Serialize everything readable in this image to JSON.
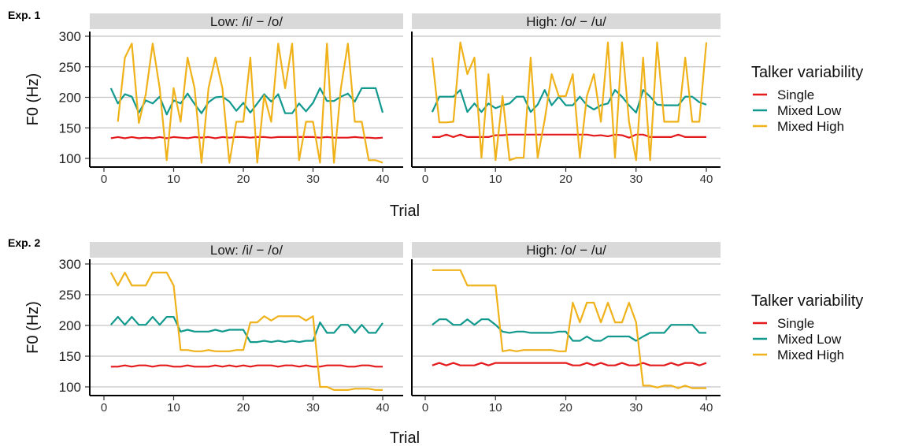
{
  "chart_data": [
    {
      "type": "line",
      "tag": "Exp. 1",
      "ylabel": "F0 (Hz)",
      "xlabel": "Trial",
      "xlim": [
        1,
        40
      ],
      "ylim": [
        100,
        300
      ],
      "x_ticks": [
        0,
        10,
        20,
        30,
        40
      ],
      "y_ticks": [
        100,
        150,
        200,
        250,
        300
      ],
      "grid": "horizontal",
      "legend": {
        "title": "Talker variability",
        "placement": "right",
        "entries": [
          "Single",
          "Mixed Low",
          "Mixed High"
        ]
      },
      "panels": [
        {
          "strip": "Low: /i/ − /o/",
          "series": [
            {
              "name": "Single",
              "color": "#e41a1c",
              "values": [
                133,
                135,
                133,
                135,
                133,
                134,
                133,
                135,
                133,
                135,
                134,
                133,
                135,
                134,
                135,
                133,
                135,
                134,
                135,
                135,
                134,
                135,
                135,
                134,
                135,
                135,
                135,
                135,
                135,
                135,
                134,
                135,
                134,
                134,
                134,
                135,
                134,
                134,
                133,
                134
              ]
            },
            {
              "name": "Mixed Low",
              "color": "#11998e",
              "values": [
                215,
                190,
                205,
                201,
                175,
                195,
                190,
                201,
                172,
                195,
                190,
                206,
                189,
                174,
                192,
                200,
                201,
                193,
                178,
                191,
                175,
                190,
                205,
                193,
                205,
                174,
                174,
                190,
                177,
                191,
                215,
                194,
                194,
                201,
                206,
                193,
                215,
                215,
                215,
                175
              ]
            },
            {
              "name": "Mixed High",
              "color": "#f0b21a",
              "values": [
                null,
                160,
                265,
                288,
                158,
                205,
                288,
                215,
                97,
                215,
                160,
                265,
                215,
                93,
                215,
                265,
                215,
                93,
                160,
                160,
                265,
                93,
                203,
                160,
                288,
                215,
                288,
                97,
                160,
                160,
                93,
                288,
                93,
                215,
                288,
                160,
                160,
                97,
                97,
                93
              ]
            }
          ]
        },
        {
          "strip": "High: /o/ − /u/",
          "series": [
            {
              "name": "Single",
              "color": "#e41a1c",
              "values": [
                135,
                135,
                139,
                135,
                139,
                135,
                135,
                135,
                135,
                138,
                138,
                139,
                139,
                139,
                139,
                139,
                139,
                139,
                139,
                139,
                139,
                139,
                139,
                137,
                138,
                136,
                139,
                138,
                134,
                139,
                139,
                135,
                135,
                135,
                135,
                139,
                135,
                135,
                135,
                135
              ]
            },
            {
              "name": "Mixed Low",
              "color": "#11998e",
              "values": [
                176,
                201,
                201,
                201,
                212,
                176,
                190,
                176,
                190,
                182,
                187,
                190,
                201,
                201,
                176,
                188,
                212,
                187,
                201,
                187,
                187,
                201,
                187,
                180,
                187,
                190,
                212,
                201,
                187,
                175,
                212,
                201,
                188,
                187,
                187,
                187,
                201,
                201,
                192,
                188
              ]
            },
            {
              "name": "Mixed High",
              "color": "#f0b21a",
              "values": [
                265,
                159,
                159,
                160,
                290,
                238,
                265,
                101,
                238,
                97,
                202,
                97,
                101,
                101,
                265,
                101,
                163,
                238,
                202,
                202,
                238,
                101,
                202,
                238,
                160,
                290,
                101,
                290,
                160,
                97,
                265,
                97,
                290,
                160,
                160,
                160,
                265,
                160,
                160,
                290
              ]
            }
          ]
        }
      ]
    },
    {
      "type": "line",
      "tag": "Exp. 2",
      "ylabel": "F0 (Hz)",
      "xlabel": "Trial",
      "xlim": [
        1,
        40
      ],
      "ylim": [
        100,
        300
      ],
      "x_ticks": [
        0,
        10,
        20,
        30,
        40
      ],
      "y_ticks": [
        100,
        150,
        200,
        250,
        300
      ],
      "grid": "horizontal",
      "legend": {
        "title": "Talker variability",
        "placement": "right",
        "entries": [
          "Single",
          "Mixed Low",
          "Mixed High"
        ]
      },
      "panels": [
        {
          "strip": "Low: /i/ − /o/",
          "series": [
            {
              "name": "Single",
              "color": "#e41a1c",
              "values": [
                133,
                133,
                135,
                133,
                135,
                135,
                133,
                135,
                135,
                133,
                133,
                135,
                133,
                133,
                133,
                135,
                133,
                135,
                133,
                135,
                133,
                135,
                135,
                135,
                133,
                135,
                135,
                133,
                135,
                133,
                133,
                135,
                135,
                135,
                133,
                133,
                135,
                135,
                133,
                133
              ]
            },
            {
              "name": "Mixed Low",
              "color": "#11998e",
              "values": [
                201,
                214,
                201,
                214,
                201,
                201,
                214,
                201,
                214,
                214,
                190,
                193,
                190,
                190,
                190,
                193,
                190,
                193,
                193,
                193,
                173,
                173,
                175,
                173,
                175,
                173,
                175,
                173,
                175,
                175,
                205,
                188,
                188,
                201,
                201,
                188,
                201,
                188,
                188,
                204
              ]
            },
            {
              "name": "Mixed High",
              "color": "#f0b21a",
              "values": [
                286,
                265,
                286,
                265,
                265,
                265,
                286,
                286,
                286,
                265,
                160,
                160,
                158,
                158,
                160,
                158,
                158,
                158,
                160,
                160,
                205,
                205,
                215,
                208,
                215,
                215,
                215,
                215,
                208,
                215,
                100,
                100,
                95,
                95,
                95,
                97,
                97,
                97,
                95,
                95
              ]
            }
          ]
        },
        {
          "strip": "High: /o/ − /u/",
          "series": [
            {
              "name": "Single",
              "color": "#e41a1c",
              "values": [
                135,
                139,
                135,
                139,
                135,
                135,
                135,
                139,
                135,
                139,
                139,
                139,
                139,
                139,
                139,
                139,
                139,
                139,
                139,
                139,
                135,
                135,
                139,
                135,
                139,
                135,
                135,
                139,
                135,
                135,
                139,
                135,
                135,
                135,
                139,
                135,
                139,
                139,
                135,
                139
              ]
            },
            {
              "name": "Mixed Low",
              "color": "#11998e",
              "values": [
                201,
                210,
                210,
                201,
                201,
                210,
                201,
                210,
                210,
                201,
                190,
                188,
                190,
                190,
                188,
                188,
                188,
                188,
                190,
                190,
                175,
                175,
                182,
                175,
                175,
                182,
                182,
                182,
                182,
                175,
                182,
                188,
                188,
                188,
                201,
                201,
                201,
                201,
                188,
                188
              ]
            },
            {
              "name": "Mixed High",
              "color": "#f0b21a",
              "values": [
                290,
                290,
                290,
                290,
                290,
                265,
                265,
                265,
                265,
                265,
                158,
                160,
                158,
                160,
                160,
                160,
                160,
                160,
                158,
                158,
                237,
                205,
                237,
                237,
                205,
                237,
                205,
                205,
                237,
                205,
                102,
                102,
                99,
                102,
                102,
                98,
                102,
                98,
                98,
                98
              ]
            }
          ]
        }
      ]
    }
  ]
}
